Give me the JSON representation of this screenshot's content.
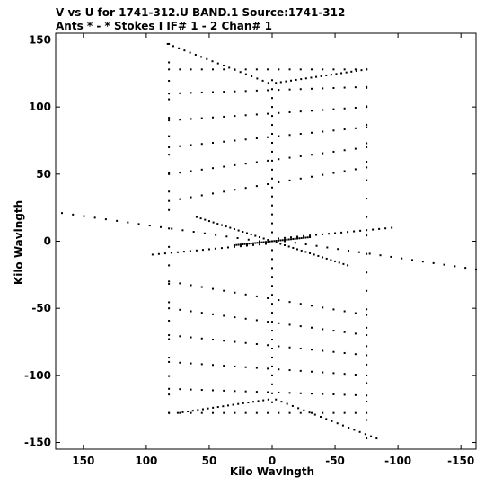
{
  "chart_data": {
    "type": "scatter",
    "title_line1": "V vs U for 1741-312.U BAND.1   Source:1741-312",
    "title_line2": "Ants * - *      Stokes I   IF# 1 - 2   Chan# 1",
    "xlabel": "Kilo Wavlngth",
    "ylabel": "Kilo Wavlngth",
    "xlim": [
      172,
      -162
    ],
    "ylim": [
      -155,
      155
    ],
    "x_reversed": true,
    "x_ticks": [
      150,
      100,
      50,
      0,
      -50,
      -100,
      -150
    ],
    "x_tick_labels": [
      "150",
      "100",
      "50",
      "0",
      "-50",
      "-100",
      "-150"
    ],
    "y_ticks": [
      150,
      100,
      50,
      0,
      -50,
      -100,
      -150
    ],
    "y_tick_labels": [
      "150",
      "100",
      "50",
      "0",
      "-50",
      "-100",
      "-150"
    ],
    "grid": false,
    "marker_color": "#000000",
    "arms": [
      {
        "u0": 3,
        "v0": 118,
        "u1": 83,
        "v1": 147,
        "t_span": [
          0.0,
          1.0
        ]
      },
      {
        "u0": -3,
        "v0": 118,
        "u1": -75,
        "v1": 128,
        "t_span": [
          0.0,
          1.0
        ]
      },
      {
        "u0": 10,
        "v0": 0,
        "u1": 167,
        "v1": 21,
        "t_span": [
          0.0,
          1.0
        ]
      },
      {
        "u0": -5,
        "v0": 2,
        "u1": -95,
        "v1": 10,
        "t_span": [
          0.0,
          1.0
        ]
      },
      {
        "u0": -10,
        "v0": 0,
        "u1": -162,
        "v1": -21,
        "t_span": [
          0.0,
          1.0
        ]
      },
      {
        "u0": 5,
        "v0": -2,
        "u1": 95,
        "v1": -10,
        "t_span": [
          0.0,
          1.0
        ]
      },
      {
        "u0": -3,
        "v0": -118,
        "u1": -83,
        "v1": -147,
        "t_span": [
          0.0,
          1.0
        ]
      },
      {
        "u0": 3,
        "v0": -118,
        "u1": 75,
        "v1": -128,
        "t_span": [
          0.0,
          1.0
        ]
      },
      {
        "u0": 0,
        "v0": 0,
        "u1": 60,
        "v1": 18,
        "t_span": [
          0.0,
          1.0
        ]
      },
      {
        "u0": 0,
        "v0": 0,
        "u1": -60,
        "v1": -18,
        "t_span": [
          0.0,
          1.0
        ]
      },
      {
        "u0": 0,
        "v0": 0,
        "u1": 30,
        "v1": -3,
        "t_span": [
          0.0,
          1.0
        ]
      },
      {
        "u0": 0,
        "v0": 0,
        "u1": -30,
        "v1": 3,
        "t_span": [
          0.0,
          1.0
        ]
      },
      {
        "u0": 0,
        "v0": 0,
        "u1": 0,
        "v1": 120,
        "t_span": [
          0.0,
          1.0
        ]
      },
      {
        "u0": 0,
        "v0": 0,
        "u1": 0,
        "v1": -120,
        "t_span": [
          0.0,
          1.0
        ]
      }
    ],
    "grid_rows": [
      {
        "u_left": 82,
        "u_right": -75,
        "v_left": 128,
        "v_right": 128
      },
      {
        "u_left": 82,
        "u_right": -75,
        "v_left": 110,
        "v_right": 115
      },
      {
        "u_left": 82,
        "u_right": -75,
        "v_left": 90,
        "v_right": 100
      },
      {
        "u_left": 82,
        "u_right": -75,
        "v_left": 70,
        "v_right": 85
      },
      {
        "u_left": 82,
        "u_right": -75,
        "v_left": 50,
        "v_right": 70
      },
      {
        "u_left": 82,
        "u_right": -75,
        "v_left": 30,
        "v_right": 55
      },
      {
        "u_left": 82,
        "u_right": -75,
        "v_left": -30,
        "v_right": -55
      },
      {
        "u_left": 82,
        "u_right": -75,
        "v_left": -50,
        "v_right": -70
      },
      {
        "u_left": 82,
        "u_right": -75,
        "v_left": -70,
        "v_right": -85
      },
      {
        "u_left": 82,
        "u_right": -75,
        "v_left": -90,
        "v_right": -100
      },
      {
        "u_left": 82,
        "u_right": -75,
        "v_left": -110,
        "v_right": -115
      },
      {
        "u_left": 82,
        "u_right": -75,
        "v_left": -128,
        "v_right": -128
      }
    ],
    "points_per_row": 18,
    "spread_cols": [
      {
        "u": 82,
        "v_min": -128,
        "v_max": 147
      },
      {
        "u": -75,
        "v_min": -147,
        "v_max": 128
      }
    ]
  }
}
